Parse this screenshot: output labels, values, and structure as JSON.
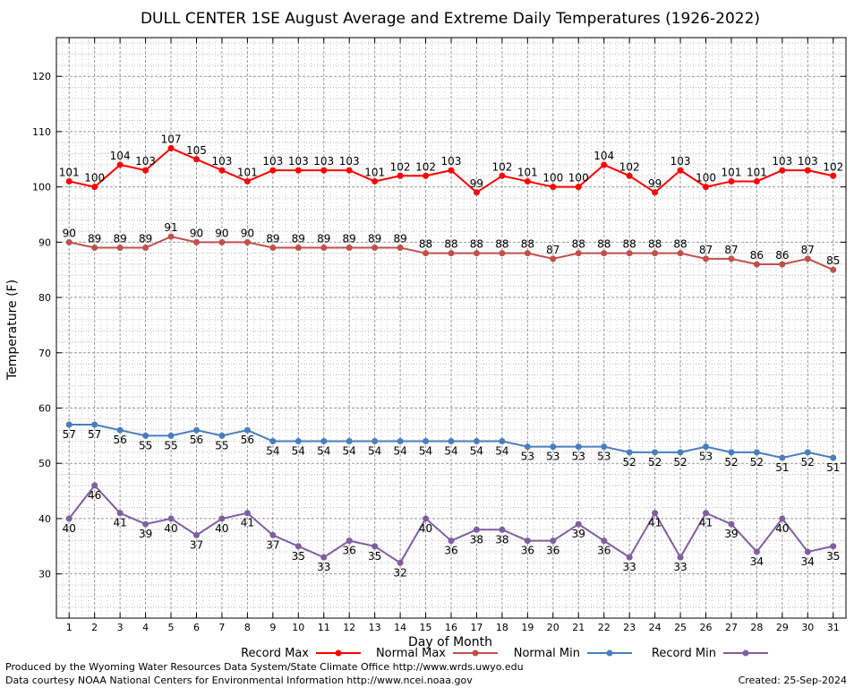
{
  "footer": {
    "credit_line1": "Produced by the Wyoming Water Resources Data System/State Climate Office http://www.wrds.uwyo.edu",
    "credit_line2": "Data courtesy NOAA National Centers for Environmental Information http://www.ncei.noaa.gov",
    "created": "Created:  25-Sep-2024"
  },
  "chart_data": {
    "type": "line",
    "title": "DULL CENTER 1SE August Average and Extreme Daily Temperatures (1926-2022)",
    "xlabel": "Day of Month",
    "ylabel": "Temperature (F)",
    "xlim": [
      0.5,
      31.5
    ],
    "ylim": [
      22,
      127
    ],
    "y_ticks": [
      30,
      40,
      50,
      60,
      70,
      80,
      90,
      100,
      110,
      120
    ],
    "grid": true,
    "legend_position": "bottom",
    "x": [
      1,
      2,
      3,
      4,
      5,
      6,
      7,
      8,
      9,
      10,
      11,
      12,
      13,
      14,
      15,
      16,
      17,
      18,
      19,
      20,
      21,
      22,
      23,
      24,
      25,
      26,
      27,
      28,
      29,
      30,
      31
    ],
    "series": [
      {
        "name": "Record Max",
        "color": "#ff0000",
        "label_pos": "above",
        "values": [
          101,
          100,
          104,
          103,
          107,
          105,
          103,
          101,
          103,
          103,
          103,
          103,
          101,
          102,
          102,
          103,
          99,
          102,
          101,
          100,
          100,
          104,
          102,
          99,
          103,
          100,
          101,
          101,
          103,
          103,
          102
        ]
      },
      {
        "name": "Normal Max",
        "color": "#c0504d",
        "label_pos": "above",
        "values": [
          90,
          89,
          89,
          89,
          91,
          90,
          90,
          90,
          89,
          89,
          89,
          89,
          89,
          89,
          88,
          88,
          88,
          88,
          88,
          87,
          88,
          88,
          88,
          88,
          88,
          87,
          87,
          86,
          86,
          87,
          85
        ]
      },
      {
        "name": "Normal Min",
        "color": "#4a7ebb",
        "label_pos": "below",
        "values": [
          57,
          57,
          56,
          55,
          55,
          56,
          55,
          56,
          54,
          54,
          54,
          54,
          54,
          54,
          54,
          54,
          54,
          54,
          53,
          53,
          53,
          53,
          52,
          52,
          52,
          53,
          52,
          52,
          51,
          52,
          51
        ]
      },
      {
        "name": "Record Min",
        "color": "#7f5fa0",
        "label_pos": "below",
        "values": [
          40,
          46,
          41,
          39,
          40,
          37,
          40,
          41,
          37,
          35,
          33,
          36,
          35,
          32,
          40,
          36,
          38,
          38,
          36,
          36,
          39,
          36,
          33,
          41,
          33,
          41,
          39,
          34,
          40,
          34,
          35
        ]
      }
    ]
  }
}
